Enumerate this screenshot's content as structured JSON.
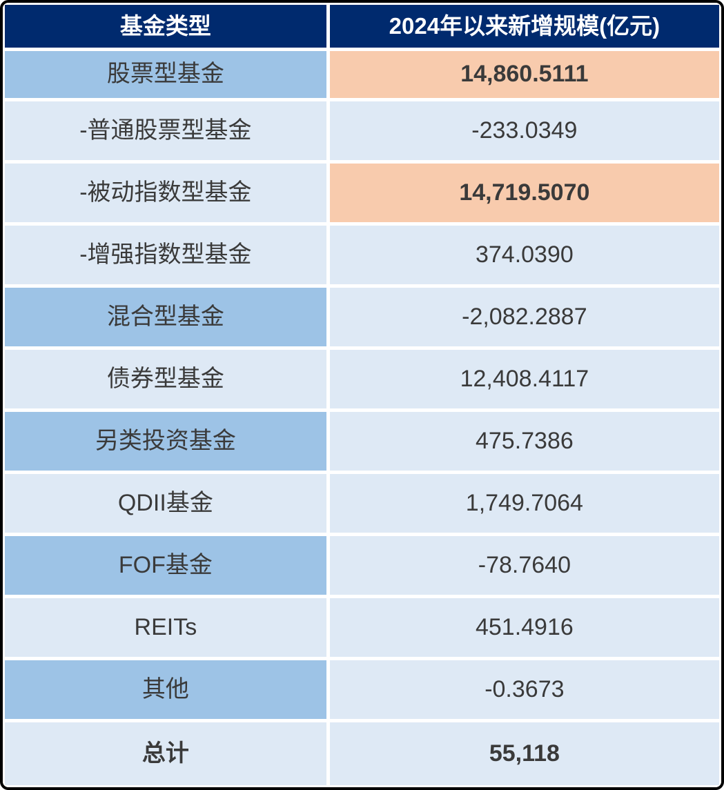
{
  "table": {
    "header": {
      "col1": "基金类型",
      "col2": "2024年以来新增规模(亿元)"
    },
    "rows": [
      {
        "label": "股票型基金",
        "value": "14,860.5111",
        "label_shade": "medium",
        "value_shade": "peach",
        "label_bold": false,
        "value_bold": true
      },
      {
        "label": "-普通股票型基金",
        "value": "-233.0349",
        "label_shade": "light",
        "value_shade": "light",
        "label_bold": false,
        "value_bold": false
      },
      {
        "label": "-被动指数型基金",
        "value": "14,719.5070",
        "label_shade": "light",
        "value_shade": "peach",
        "label_bold": false,
        "value_bold": true
      },
      {
        "label": "-增强指数型基金",
        "value": "374.0390",
        "label_shade": "light",
        "value_shade": "light",
        "label_bold": false,
        "value_bold": false
      },
      {
        "label": "混合型基金",
        "value": "-2,082.2887",
        "label_shade": "medium",
        "value_shade": "light",
        "label_bold": false,
        "value_bold": false
      },
      {
        "label": "债券型基金",
        "value": "12,408.4117",
        "label_shade": "light",
        "value_shade": "light",
        "label_bold": false,
        "value_bold": false
      },
      {
        "label": "另类投资基金",
        "value": "475.7386",
        "label_shade": "medium",
        "value_shade": "light",
        "label_bold": false,
        "value_bold": false
      },
      {
        "label": "QDII基金",
        "value": "1,749.7064",
        "label_shade": "light",
        "value_shade": "light",
        "label_bold": false,
        "value_bold": false
      },
      {
        "label": "FOF基金",
        "value": "-78.7640",
        "label_shade": "medium",
        "value_shade": "light",
        "label_bold": false,
        "value_bold": false
      },
      {
        "label": "REITs",
        "value": "451.4916",
        "label_shade": "light",
        "value_shade": "light",
        "label_bold": false,
        "value_bold": false
      },
      {
        "label": "其他",
        "value": "-0.3673",
        "label_shade": "medium",
        "value_shade": "light",
        "label_bold": false,
        "value_bold": false
      },
      {
        "label": "总计",
        "value": "55,118",
        "label_shade": "light",
        "value_shade": "light",
        "label_bold": true,
        "value_bold": true
      }
    ],
    "colors": {
      "header_bg": "#002A6E",
      "header_text": "#FFFFFF",
      "row_medium": "#9DC3E6",
      "row_light": "#DEE9F5",
      "highlight_peach": "#F8CBAD",
      "cell_text": "#3A3A3A",
      "frame": "#000000",
      "gap": "#FFFFFF"
    }
  },
  "chart_data": {
    "type": "table",
    "title": "",
    "columns": [
      "基金类型",
      "2024年以来新增规模(亿元)"
    ],
    "rows": [
      [
        "股票型基金",
        14860.5111
      ],
      [
        "-普通股票型基金",
        -233.0349
      ],
      [
        "-被动指数型基金",
        14719.507
      ],
      [
        "-增强指数型基金",
        374.039
      ],
      [
        "混合型基金",
        -2082.2887
      ],
      [
        "债券型基金",
        12408.4117
      ],
      [
        "另类投资基金",
        475.7386
      ],
      [
        "QDII基金",
        1749.7064
      ],
      [
        "FOF基金",
        -78.764
      ],
      [
        "REITs",
        451.4916
      ],
      [
        "其他",
        -0.3673
      ],
      [
        "总计",
        55118
      ]
    ],
    "highlighted_rows": [
      "股票型基金",
      "-被动指数型基金"
    ],
    "notes": "Peach-highlighted bold values mark 股票型基金 and -被动指数型基金; 总计 row is bold."
  }
}
